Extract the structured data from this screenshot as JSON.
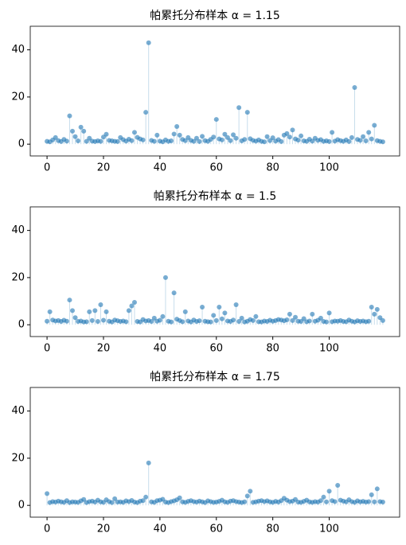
{
  "chart_data": [
    {
      "type": "stem",
      "title": "帕累托分布样本 α = 1.15",
      "color": "#1f77b4",
      "x": [
        0,
        1,
        2,
        3,
        4,
        5,
        6,
        7,
        8,
        9,
        10,
        11,
        12,
        13,
        14,
        15,
        16,
        17,
        18,
        19,
        20,
        21,
        22,
        23,
        24,
        25,
        26,
        27,
        28,
        29,
        30,
        31,
        32,
        33,
        34,
        35,
        36,
        37,
        38,
        39,
        40,
        41,
        42,
        43,
        44,
        45,
        46,
        47,
        48,
        49,
        50,
        51,
        52,
        53,
        54,
        55,
        56,
        57,
        58,
        59,
        60,
        61,
        62,
        63,
        64,
        65,
        66,
        67,
        68,
        69,
        70,
        71,
        72,
        73,
        74,
        75,
        76,
        77,
        78,
        79,
        80,
        81,
        82,
        83,
        84,
        85,
        86,
        87,
        88,
        89,
        90,
        91,
        92,
        93,
        94,
        95,
        96,
        97,
        98,
        99,
        100,
        101,
        102,
        103,
        104,
        105,
        106,
        107,
        108,
        109,
        110,
        111,
        112,
        113,
        114,
        115,
        116,
        117,
        118,
        119
      ],
      "values": [
        1.2,
        1.0,
        1.8,
        2.8,
        1.5,
        1.1,
        2.0,
        1.3,
        12,
        5.5,
        3.2,
        1.4,
        7.2,
        5.5,
        1.2,
        2.5,
        1.3,
        1.1,
        1.4,
        1.2,
        3.0,
        4.2,
        1.6,
        1.4,
        1.2,
        1.1,
        2.8,
        1.9,
        1.3,
        2.1,
        1.5,
        5.0,
        2.9,
        2.2,
        1.8,
        13.5,
        43,
        1.6,
        1.2,
        3.8,
        1.3,
        1.0,
        1.8,
        1.2,
        1.4,
        4.3,
        7.5,
        3.8,
        2.0,
        1.5,
        2.8,
        1.6,
        1.2,
        2.5,
        1.1,
        3.3,
        1.5,
        1.2,
        2.0,
        3.0,
        10.5,
        2.2,
        1.8,
        4.2,
        2.8,
        1.5,
        4.0,
        2.5,
        15.5,
        1.4,
        2.0,
        13.5,
        2.3,
        1.6,
        1.3,
        1.8,
        1.2,
        1.0,
        3.2,
        1.5,
        2.7,
        1.3,
        1.9,
        1.1,
        3.8,
        4.5,
        3.0,
        6.0,
        2.2,
        1.7,
        3.5,
        1.4,
        1.2,
        2.1,
        1.3,
        2.5,
        1.6,
        1.9,
        1.2,
        1.4,
        1.1,
        5.0,
        1.3,
        1.9,
        1.5,
        1.2,
        1.8,
        1.1,
        2.8,
        24,
        2.0,
        1.6,
        3.2,
        1.4,
        5.0,
        2.2,
        8.0,
        1.5,
        1.2,
        1.0
      ],
      "xlim": [
        -5.95,
        124.95
      ],
      "xticks": [
        0,
        20,
        40,
        60,
        80,
        100
      ],
      "ylim": [
        -5,
        50
      ],
      "yticks": [
        0,
        20,
        40
      ]
    },
    {
      "type": "stem",
      "title": "帕累托分布样本 α = 1.5",
      "color": "#1f77b4",
      "x": [
        0,
        1,
        2,
        3,
        4,
        5,
        6,
        7,
        8,
        9,
        10,
        11,
        12,
        13,
        14,
        15,
        16,
        17,
        18,
        19,
        20,
        21,
        22,
        23,
        24,
        25,
        26,
        27,
        28,
        29,
        30,
        31,
        32,
        33,
        34,
        35,
        36,
        37,
        38,
        39,
        40,
        41,
        42,
        43,
        44,
        45,
        46,
        47,
        48,
        49,
        50,
        51,
        52,
        53,
        54,
        55,
        56,
        57,
        58,
        59,
        60,
        61,
        62,
        63,
        64,
        65,
        66,
        67,
        68,
        69,
        70,
        71,
        72,
        73,
        74,
        75,
        76,
        77,
        78,
        79,
        80,
        81,
        82,
        83,
        84,
        85,
        86,
        87,
        88,
        89,
        90,
        91,
        92,
        93,
        94,
        95,
        96,
        97,
        98,
        99,
        100,
        101,
        102,
        103,
        104,
        105,
        106,
        107,
        108,
        109,
        110,
        111,
        112,
        113,
        114,
        115,
        116,
        117,
        118,
        119
      ],
      "values": [
        1.5,
        5.5,
        2.0,
        1.6,
        1.8,
        1.4,
        1.9,
        1.5,
        10.5,
        6.0,
        3.0,
        1.4,
        1.6,
        1.2,
        1.3,
        5.5,
        1.8,
        6.0,
        1.4,
        8.5,
        1.9,
        5.5,
        1.5,
        1.2,
        2.0,
        1.7,
        1.4,
        1.6,
        1.3,
        6.0,
        8.0,
        9.5,
        1.4,
        1.2,
        2.2,
        1.6,
        1.8,
        1.4,
        2.8,
        1.5,
        1.9,
        3.5,
        20,
        1.5,
        1.2,
        13.5,
        2.4,
        1.8,
        1.3,
        5.5,
        1.6,
        1.2,
        2.0,
        1.4,
        1.7,
        7.5,
        1.5,
        1.3,
        1.2,
        4.0,
        1.8,
        7.5,
        2.5,
        5.0,
        1.6,
        1.4,
        2.0,
        8.5,
        1.4,
        2.8,
        1.2,
        1.5,
        2.2,
        1.8,
        3.5,
        1.3,
        1.2,
        1.6,
        1.4,
        1.9,
        1.5,
        1.8,
        2.2,
        2.0,
        1.7,
        2.1,
        4.5,
        1.8,
        3.2,
        1.5,
        1.4,
        2.6,
        1.3,
        1.6,
        4.5,
        1.5,
        1.9,
        2.8,
        1.4,
        1.2,
        5.0,
        1.3,
        1.6,
        1.5,
        1.8,
        1.4,
        1.3,
        2.0,
        1.5,
        1.2,
        1.7,
        1.4,
        1.6,
        1.3,
        1.5,
        7.5,
        4.5,
        6.5,
        3.0,
        1.8
      ],
      "xlim": [
        -5.95,
        124.95
      ],
      "xticks": [
        0,
        20,
        40,
        60,
        80,
        100
      ],
      "ylim": [
        -5,
        50
      ],
      "yticks": [
        0,
        20,
        40
      ]
    },
    {
      "type": "stem",
      "title": "帕累托分布样本 α = 1.75",
      "color": "#1f77b4",
      "x": [
        0,
        1,
        2,
        3,
        4,
        5,
        6,
        7,
        8,
        9,
        10,
        11,
        12,
        13,
        14,
        15,
        16,
        17,
        18,
        19,
        20,
        21,
        22,
        23,
        24,
        25,
        26,
        27,
        28,
        29,
        30,
        31,
        32,
        33,
        34,
        35,
        36,
        37,
        38,
        39,
        40,
        41,
        42,
        43,
        44,
        45,
        46,
        47,
        48,
        49,
        50,
        51,
        52,
        53,
        54,
        55,
        56,
        57,
        58,
        59,
        60,
        61,
        62,
        63,
        64,
        65,
        66,
        67,
        68,
        69,
        70,
        71,
        72,
        73,
        74,
        75,
        76,
        77,
        78,
        79,
        80,
        81,
        82,
        83,
        84,
        85,
        86,
        87,
        88,
        89,
        90,
        91,
        92,
        93,
        94,
        95,
        96,
        97,
        98,
        99,
        100,
        101,
        102,
        103,
        104,
        105,
        106,
        107,
        108,
        109,
        110,
        111,
        112,
        113,
        114,
        115,
        116,
        117,
        118,
        119
      ],
      "values": [
        5.0,
        1.2,
        1.6,
        1.4,
        1.8,
        1.5,
        1.3,
        2.0,
        1.2,
        1.5,
        1.4,
        1.3,
        1.9,
        2.5,
        1.2,
        1.6,
        1.8,
        1.4,
        2.2,
        1.5,
        1.3,
        2.4,
        1.6,
        1.2,
        2.8,
        1.4,
        1.5,
        1.3,
        1.9,
        1.6,
        2.1,
        1.4,
        1.2,
        1.8,
        2.0,
        3.5,
        18,
        1.5,
        1.3,
        2.0,
        2.2,
        2.6,
        1.4,
        1.2,
        1.6,
        1.9,
        2.4,
        3.2,
        1.5,
        1.3,
        1.7,
        2.0,
        1.6,
        1.4,
        1.8,
        1.5,
        1.2,
        1.9,
        1.6,
        1.3,
        1.4,
        1.7,
        2.2,
        1.5,
        1.3,
        1.8,
        2.0,
        1.6,
        1.4,
        1.2,
        1.5,
        4.0,
        6.0,
        1.3,
        1.5,
        1.8,
        2.0,
        1.6,
        1.9,
        1.5,
        1.3,
        1.7,
        1.4,
        2.0,
        3.0,
        2.2,
        1.6,
        1.8,
        2.5,
        1.4,
        1.3,
        1.7,
        2.2,
        1.5,
        1.3,
        1.6,
        1.4,
        2.0,
        3.5,
        1.5,
        6.0,
        2.0,
        1.6,
        8.5,
        2.2,
        1.8,
        1.5,
        2.4,
        1.6,
        1.3,
        1.9,
        1.5,
        1.7,
        1.4,
        1.6,
        4.5,
        1.5,
        7.0,
        1.6,
        1.4
      ],
      "xlim": [
        -5.95,
        124.95
      ],
      "xticks": [
        0,
        20,
        40,
        60,
        80,
        100
      ],
      "ylim": [
        -5,
        50
      ],
      "yticks": [
        0,
        20,
        40
      ]
    }
  ]
}
